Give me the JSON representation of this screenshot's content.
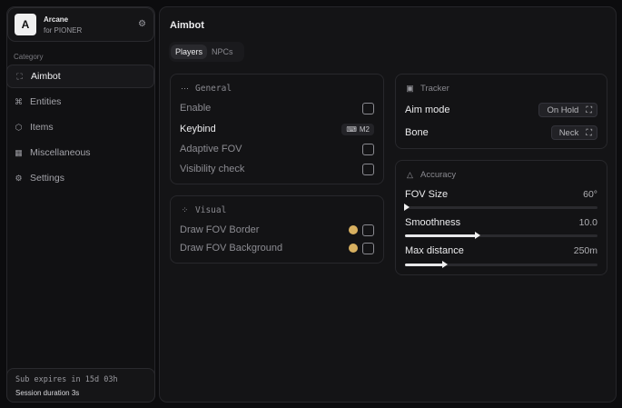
{
  "app": {
    "logo_letter": "A",
    "name": "Arcane",
    "subtitle": "for PIONER"
  },
  "sidebar": {
    "category_label": "Category",
    "items": [
      {
        "label": "Aimbot",
        "icon": "crosshair-icon",
        "active": true
      },
      {
        "label": "Entities",
        "icon": "entities-icon"
      },
      {
        "label": "Items",
        "icon": "box-icon"
      },
      {
        "label": "Miscellaneous",
        "icon": "misc-icon"
      },
      {
        "label": "Settings",
        "icon": "gear-icon"
      }
    ],
    "footer": {
      "sub_expires": "Sub expires in 15d 03h",
      "session": "Session duration 3s"
    }
  },
  "main": {
    "title": "Aimbot",
    "tabs": [
      {
        "label": "Players",
        "active": true
      },
      {
        "label": "NPCs"
      }
    ]
  },
  "general": {
    "title": "General",
    "enable": "Enable",
    "keybind": "Keybind",
    "keybind_value": "M2",
    "adaptive_fov": "Adaptive FOV",
    "visibility_check": "Visibility check"
  },
  "visual": {
    "title": "Visual",
    "draw_fov_border": "Draw FOV Border",
    "draw_fov_background": "Draw FOV Background",
    "swatch_color": "#d8b060"
  },
  "tracker": {
    "title": "Tracker",
    "aim_mode": "Aim mode",
    "aim_mode_value": "On Hold",
    "bone": "Bone",
    "bone_value": "Neck"
  },
  "accuracy": {
    "title": "Accuracy",
    "fov_size": "FOV Size",
    "fov_size_value": "60°",
    "fov_fraction": 0.0,
    "smoothness": "Smoothness",
    "smoothness_value": "10.0",
    "smoothness_fraction": 0.37,
    "max_distance": "Max distance",
    "max_distance_value": "250m",
    "max_distance_fraction": 0.2
  }
}
